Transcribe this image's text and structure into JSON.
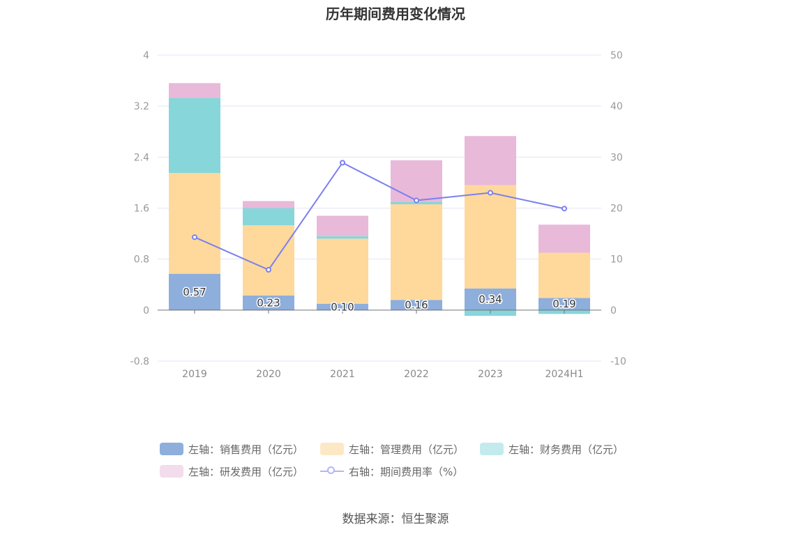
{
  "chart_data": {
    "type": "bar",
    "stacked": true,
    "title": "历年期间费用变化情况",
    "categories": [
      "2019",
      "2020",
      "2021",
      "2022",
      "2023",
      "2024H1"
    ],
    "left_axis": {
      "min": -0.8,
      "max": 4,
      "ticks": [
        "-0.8",
        "0",
        "0.8",
        "1.6",
        "2.4",
        "3.2",
        "4"
      ]
    },
    "right_axis": {
      "min": -10,
      "max": 50,
      "ticks": [
        "-10",
        "0",
        "10",
        "20",
        "30",
        "40",
        "50"
      ]
    },
    "series": [
      {
        "name": "左轴：销售费用（亿元）",
        "type": "bar",
        "axis": "left",
        "color": "#8eaedc",
        "values": [
          0.57,
          0.23,
          0.1,
          0.16,
          0.34,
          0.19
        ],
        "labels": [
          "0.57",
          "0.23",
          "0.10",
          "0.16",
          "0.34",
          "0.19"
        ]
      },
      {
        "name": "左轴：管理费用（亿元）",
        "type": "bar",
        "axis": "left",
        "color": "#fed99b",
        "values": [
          1.58,
          1.1,
          1.02,
          1.5,
          1.62,
          0.71
        ]
      },
      {
        "name": "左轴：财务费用（亿元）",
        "type": "bar",
        "axis": "left",
        "color": "#87d6da",
        "values": [
          1.18,
          0.27,
          0.04,
          0.04,
          -0.09,
          -0.06
        ]
      },
      {
        "name": "左轴：研发费用（亿元）",
        "type": "bar",
        "axis": "left",
        "color": "#e8b9d9",
        "values": [
          0.23,
          0.11,
          0.32,
          0.65,
          0.77,
          0.44
        ]
      },
      {
        "name": "右轴：期间费用率（%）",
        "type": "line",
        "axis": "right",
        "color": "#7b7ff0",
        "values": [
          14.3,
          7.9,
          28.9,
          21.5,
          23.0,
          19.9
        ]
      }
    ]
  },
  "legend": [
    {
      "label": "左轴：销售费用（亿元）",
      "color": "#8eaedc",
      "kind": "box"
    },
    {
      "label": "左轴：管理费用（亿元）",
      "color": "#fde8c6",
      "kind": "box"
    },
    {
      "label": "左轴：财务费用（亿元）",
      "color": "#c3ebed",
      "kind": "box"
    },
    {
      "label": "左轴：研发费用（亿元）",
      "color": "#f3dcec",
      "kind": "box"
    },
    {
      "label": "右轴：期间费用率（%）",
      "color": "#b3b6f6",
      "kind": "line"
    }
  ],
  "source": "数据来源：恒生聚源"
}
